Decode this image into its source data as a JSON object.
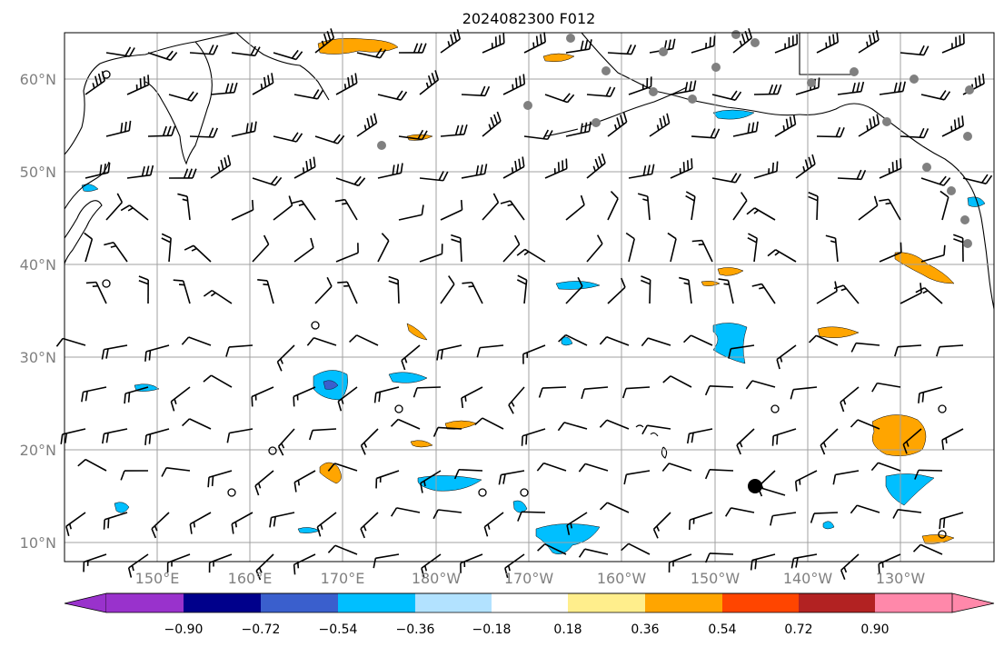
{
  "map": {
    "title": "2024082300 F012",
    "lat_labels": [
      "60°N",
      "50°N",
      "40°N",
      "30°N",
      "20°N",
      "10°N"
    ],
    "lon_labels": [
      "150°E",
      "160°E",
      "170°E",
      "180°W",
      "170°W",
      "160°W",
      "150°W",
      "140°W",
      "130°W"
    ],
    "label_color": "#808080",
    "grid_color": "#a0a0a0"
  },
  "colorbar": {
    "ticks": [
      "−0.90",
      "−0.72",
      "−0.54",
      "−0.36",
      "−0.18",
      "0.18",
      "0.36",
      "0.54",
      "0.72",
      "0.90"
    ],
    "colors": [
      "#9932cc",
      "#00008b",
      "#3a5fcd",
      "#00bfff",
      "#b2e2ff",
      "#ffffff",
      "#ffee8c",
      "#ffa500",
      "#ff4500",
      "#b22222",
      "#ff88aa"
    ]
  }
}
